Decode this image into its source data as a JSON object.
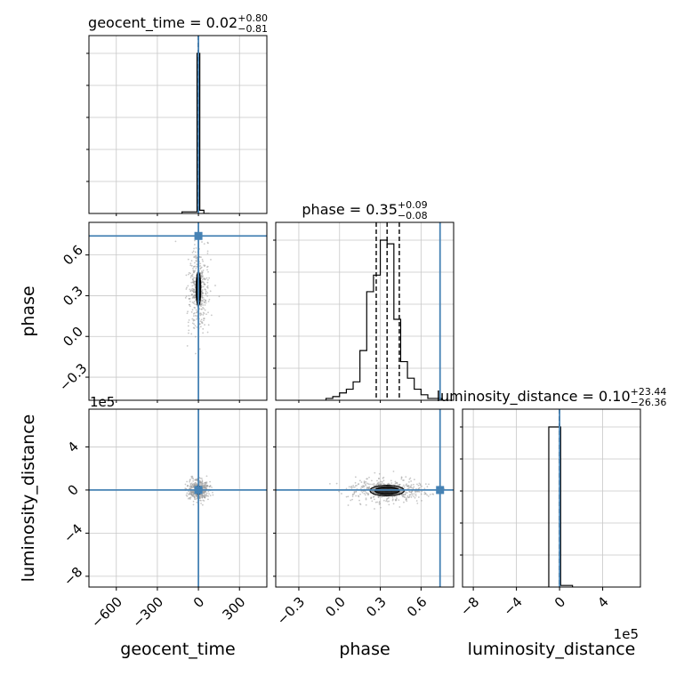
{
  "chart_data": {
    "type": "corner",
    "parameters": [
      "geocent_time",
      "phase",
      "luminosity_distance"
    ],
    "axis_labels": [
      "geocent_time",
      "phase",
      "luminosity_distance"
    ],
    "axis_offset_labels": {
      "luminosity_distance_y": "1e5",
      "luminosity_distance_x": "1e5"
    },
    "injection": {
      "geocent_time": 0,
      "phase": 0.74,
      "luminosity_distance": 0
    },
    "injection_color": "#4682b4",
    "ranges": {
      "geocent_time": [
        -800,
        500
      ],
      "phase": [
        -0.47,
        0.84
      ],
      "luminosity_distance": [
        -9.0,
        7.5
      ]
    },
    "ticks": {
      "geocent_time": {
        "values": [
          -600,
          -300,
          0,
          300
        ],
        "labels": [
          "−600",
          "−300",
          "0",
          "300"
        ]
      },
      "phase": {
        "values": [
          -0.3,
          0.0,
          0.3,
          0.6
        ],
        "labels": [
          "−0.3",
          "0.0",
          "0.3",
          "0.6"
        ]
      },
      "luminosity_distance": {
        "values": [
          -8,
          -4,
          0,
          4
        ],
        "labels": [
          "−8",
          "−4",
          "0",
          "4"
        ]
      }
    },
    "marginals": [
      {
        "parameter": "geocent_time",
        "title_main": "geocent_time = 0.02",
        "title_sup": "+0.80",
        "title_sub": "−0.81",
        "quantiles": [
          -0.79,
          0.02,
          0.82
        ],
        "bins": [
          [
            -120,
            -40,
            1
          ],
          [
            -40,
            -10,
            1
          ],
          [
            -10,
            0,
            100
          ],
          [
            0,
            10,
            100
          ],
          [
            10,
            40,
            2
          ],
          [
            40,
            80,
            0
          ]
        ]
      },
      {
        "parameter": "phase",
        "title_main": "phase = 0.35",
        "title_sup": "+0.09",
        "title_sub": "−0.08",
        "quantiles": [
          0.27,
          0.35,
          0.44
        ],
        "bins": [
          [
            -0.1,
            -0.05,
            1
          ],
          [
            -0.05,
            0.0,
            2
          ],
          [
            0.0,
            0.05,
            4
          ],
          [
            0.05,
            0.1,
            6
          ],
          [
            0.1,
            0.15,
            10
          ],
          [
            0.15,
            0.2,
            27
          ],
          [
            0.2,
            0.25,
            59
          ],
          [
            0.25,
            0.3,
            68
          ],
          [
            0.3,
            0.35,
            87
          ],
          [
            0.35,
            0.4,
            85
          ],
          [
            0.4,
            0.45,
            44
          ],
          [
            0.45,
            0.5,
            21
          ],
          [
            0.5,
            0.55,
            12
          ],
          [
            0.55,
            0.6,
            6
          ],
          [
            0.6,
            0.65,
            3
          ],
          [
            0.65,
            0.7,
            1
          ],
          [
            0.7,
            0.75,
            1
          ]
        ]
      },
      {
        "parameter": "luminosity_distance",
        "title_main": "luminosity_distance = 0.10",
        "title_sup": "+23.44",
        "title_sub": "−26.36",
        "quantiles": [
          -0.00026,
          1e-06,
          0.00023
        ],
        "bins": [
          [
            -1.0,
            0.1,
            100
          ],
          [
            0.1,
            1.2,
            1
          ]
        ]
      }
    ],
    "scatter_panels": [
      {
        "x": "geocent_time",
        "y": "phase",
        "center": [
          0,
          0.35
        ],
        "contour_halfwidth": [
          12,
          0.09
        ]
      },
      {
        "x": "geocent_time",
        "y": "luminosity_distance",
        "center": [
          0,
          0
        ],
        "contour_halfwidth": [
          10,
          0.3
        ]
      },
      {
        "x": "phase",
        "y": "luminosity_distance",
        "center": [
          0.35,
          -0.05
        ],
        "contour_halfwidth": [
          0.09,
          0.35
        ]
      }
    ],
    "grid": true
  }
}
